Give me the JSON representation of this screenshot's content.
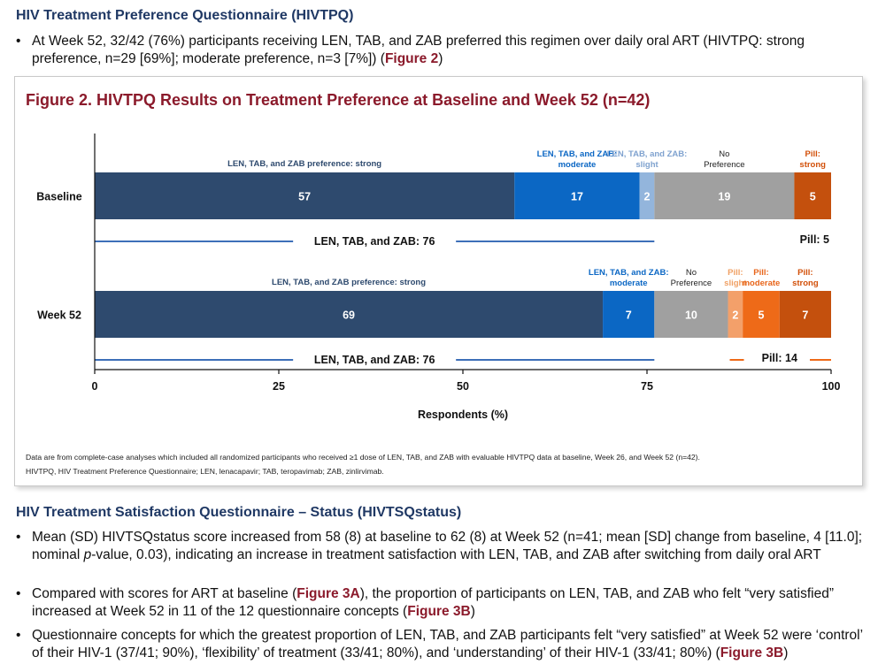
{
  "hivtpq_section": {
    "title": "HIV Treatment Preference Questionnaire (HIVTPQ)",
    "bullet": {
      "text": "At Week 52, 32/42 (76%) participants receiving LEN, TAB, and ZAB preferred this regimen over daily oral ART (HIVTPQ: strong preference, n=29 [69%]; moderate preference, n=3 [7%]) (",
      "ref": "Figure 2",
      "close": ")"
    }
  },
  "figure": {
    "title": "Figure 2. HIVTPQ Results on Treatment Preference at Baseline and Week 52 (n=42)",
    "footnote_1": "Data are from complete-case analyses which included all randomized participants who received ≥1 dose of LEN, TAB, and ZAB with evaluable HIVTPQ data at baseline, Week 26, and Week 52 (n=42).",
    "footnote_2": "HIVTPQ, HIV Treatment Preference Questionnaire; LEN, lenacapavir; TAB, teropavimab; ZAB, zinlirvimab."
  },
  "chart_data": {
    "type": "bar",
    "orientation": "horizontal-stacked",
    "xlabel": "Respondents (%)",
    "xlim": [
      0,
      100
    ],
    "xticks": [
      "0",
      "25",
      "50",
      "75",
      "100"
    ],
    "grid": false,
    "colors": {
      "strong": "#2e4a6e",
      "moderate": "#0b67c4",
      "slight": "#93b5dc",
      "no_pref": "#a0a0a0",
      "pill_slight": "#f3a06a",
      "pill_moderate": "#ee6a18",
      "pill_strong": "#c4500d"
    },
    "rows": [
      {
        "label": "Baseline",
        "segments": [
          {
            "key": "strong",
            "value": 57,
            "name": "LEN, TAB, and ZAB preference: strong"
          },
          {
            "key": "moderate",
            "value": 17,
            "name": "LEN, TAB, and ZAB: moderate"
          },
          {
            "key": "slight",
            "value": 2,
            "name": "LEN, TAB, and ZAB: slight"
          },
          {
            "key": "no_pref",
            "value": 19,
            "name": "No Preference"
          },
          {
            "key": "pill_strong",
            "value": 5,
            "name": "Pill: strong"
          }
        ],
        "len_total_label": "LEN, TAB, and ZAB: 76",
        "pill_total_label": "Pill: 5"
      },
      {
        "label": "Week 52",
        "segments": [
          {
            "key": "strong",
            "value": 69,
            "name": "LEN, TAB, and ZAB preference: strong"
          },
          {
            "key": "moderate",
            "value": 7,
            "name": "LEN, TAB, and ZAB: moderate"
          },
          {
            "key": "no_pref",
            "value": 10,
            "name": "No Preference"
          },
          {
            "key": "pill_slight",
            "value": 2,
            "name": "Pill: slight"
          },
          {
            "key": "pill_moderate",
            "value": 5,
            "name": "Pill: moderate"
          },
          {
            "key": "pill_strong",
            "value": 7,
            "name": "Pill: strong"
          }
        ],
        "len_total_label": "LEN, TAB, and ZAB: 76",
        "pill_total_label": "Pill: 14"
      }
    ]
  },
  "hivtsq_section": {
    "title": "HIV Treatment Satisfaction Questionnaire – Status (HIVTSQstatus)",
    "bullet_1": {
      "text_a": "Mean (SD) HIVTSQstatus score increased from 58 (8) at baseline to 62 (8) at Week 52 (n=41; mean [SD] change from baseline, 4 [11.0]; nominal ",
      "italic": "p",
      "text_b": "-value, 0.03), indicating an increase in treatment satisfaction with LEN, TAB, and ZAB after switching from daily oral ART"
    },
    "bullet_2": {
      "text_a": "Compared with scores for ART at baseline (",
      "ref_a": "Figure 3A",
      "text_b": "), the proportion of participants on LEN, TAB, and ZAB who felt “very satisfied” increased at Week 52 in 11 of the 12 questionnaire concepts (",
      "ref_b": "Figure 3B",
      "text_c": ")"
    },
    "bullet_3": {
      "text_a": "Questionnaire concepts for which the greatest proportion of LEN, TAB, and ZAB participants felt “very satisfied” at Week 52 were ‘control’ of their HIV-1 (37/41; 90%), ‘flexibility’ of treatment (33/41; 80%), and ‘understanding’ of their HIV-1 (33/41; 80%) (",
      "ref": "Figure 3B",
      "text_b": ")"
    }
  }
}
